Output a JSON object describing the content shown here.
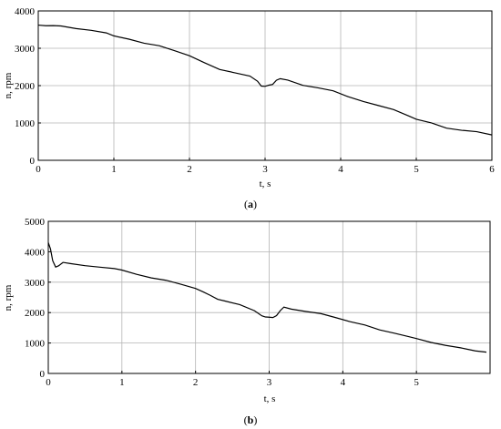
{
  "chart_data": [
    {
      "type": "line",
      "caption": "(a)",
      "caption_parts": {
        "open": "(",
        "letter": "a",
        "close": ")"
      },
      "xlabel": "t, s",
      "ylabel": "n, rpm",
      "xlim": [
        0,
        6
      ],
      "ylim": [
        0,
        4000
      ],
      "xticks": [
        0,
        1,
        2,
        3,
        4,
        5,
        6
      ],
      "yticks": [
        0,
        1000,
        2000,
        3000,
        4000
      ],
      "grid": true,
      "series": [
        {
          "x": [
            0,
            0.1,
            0.2,
            0.3,
            0.5,
            0.7,
            0.9,
            1.0,
            1.2,
            1.4,
            1.6,
            1.8,
            2.0,
            2.2,
            2.4,
            2.6,
            2.8,
            2.9,
            2.95,
            3.0,
            3.05,
            3.1,
            3.15,
            3.2,
            3.3,
            3.5,
            3.7,
            3.9,
            4.1,
            4.3,
            4.5,
            4.7,
            4.9,
            5.0,
            5.2,
            5.4,
            5.6,
            5.8,
            6.0
          ],
          "y": [
            3620,
            3610,
            3600,
            3580,
            3540,
            3480,
            3400,
            3350,
            3250,
            3130,
            3050,
            2950,
            2800,
            2600,
            2450,
            2350,
            2250,
            2100,
            2000,
            1980,
            2000,
            2050,
            2150,
            2180,
            2130,
            2020,
            1940,
            1850,
            1720,
            1580,
            1460,
            1340,
            1200,
            1100,
            990,
            880,
            810,
            760,
            680
          ]
        }
      ],
      "color": "#000000"
    },
    {
      "type": "line",
      "caption": "(b)",
      "caption_parts": {
        "open": "(",
        "letter": "b",
        "close": ")"
      },
      "xlabel": "t, s",
      "ylabel": "n, rpm",
      "xlim": [
        0,
        6
      ],
      "ylim": [
        0,
        5000
      ],
      "xticks": [
        0,
        1,
        2,
        3,
        4,
        5
      ],
      "yticks": [
        0,
        1000,
        2000,
        3000,
        4000,
        5000
      ],
      "grid": true,
      "series": [
        {
          "x": [
            0,
            0.03,
            0.06,
            0.1,
            0.14,
            0.2,
            0.3,
            0.5,
            0.7,
            0.9,
            1.0,
            1.2,
            1.4,
            1.6,
            1.8,
            2.0,
            2.1,
            2.2,
            2.3,
            2.4,
            2.6,
            2.8,
            2.9,
            2.95,
            3.0,
            3.05,
            3.1,
            3.15,
            3.2,
            3.3,
            3.5,
            3.7,
            3.9,
            4.1,
            4.3,
            4.5,
            4.7,
            4.9,
            5.0,
            5.2,
            5.4,
            5.6,
            5.8,
            5.95
          ],
          "y": [
            4300,
            4100,
            3700,
            3480,
            3550,
            3650,
            3600,
            3560,
            3500,
            3440,
            3380,
            3270,
            3140,
            3050,
            2950,
            2800,
            2680,
            2550,
            2450,
            2380,
            2250,
            2080,
            1900,
            1850,
            1830,
            1850,
            1900,
            2050,
            2200,
            2120,
            2030,
            1950,
            1850,
            1700,
            1580,
            1450,
            1330,
            1200,
            1130,
            1030,
            920,
            830,
            760,
            700
          ]
        }
      ],
      "color": "#000000"
    }
  ]
}
